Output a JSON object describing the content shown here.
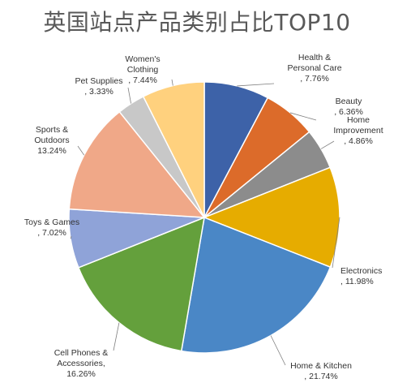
{
  "chart_data": {
    "type": "pie",
    "title": "英国站点产品类别占比TOP10",
    "slices": [
      {
        "label_lines": [
          "Health &",
          "Personal Care",
          ", 7.76%"
        ],
        "value": 7.76,
        "color": "#3D62A8"
      },
      {
        "label_lines": [
          "Beauty",
          ", 6.36%"
        ],
        "value": 6.36,
        "color": "#DC6B2A"
      },
      {
        "label_lines": [
          "Home",
          "Improvement",
          ", 4.86%"
        ],
        "value": 4.86,
        "color": "#8C8C8C"
      },
      {
        "label_lines": [
          "Electronics",
          ", 11.98%"
        ],
        "value": 11.98,
        "color": "#E6AC00"
      },
      {
        "label_lines": [
          "Home & Kitchen",
          ", 21.74%"
        ],
        "value": 21.74,
        "color": "#4A87C6"
      },
      {
        "label_lines": [
          "Cell Phones &",
          "Accessories,",
          "16.26%"
        ],
        "value": 16.26,
        "color": "#64A03C"
      },
      {
        "label_lines": [
          "Toys & Games",
          ", 7.02%"
        ],
        "value": 7.02,
        "color": "#8FA3D8"
      },
      {
        "label_lines": [
          "Sports &",
          "Outdoors",
          "13.24%"
        ],
        "value": 13.24,
        "color": "#F0A888"
      },
      {
        "label_lines": [
          "Pet Supplies",
          ", 3.33%"
        ],
        "value": 3.33,
        "color": "#C8C8C8"
      },
      {
        "label_lines": [
          "Women's",
          "Clothing",
          ", 7.44%"
        ],
        "value": 7.44,
        "color": "#FFD17E"
      }
    ]
  }
}
